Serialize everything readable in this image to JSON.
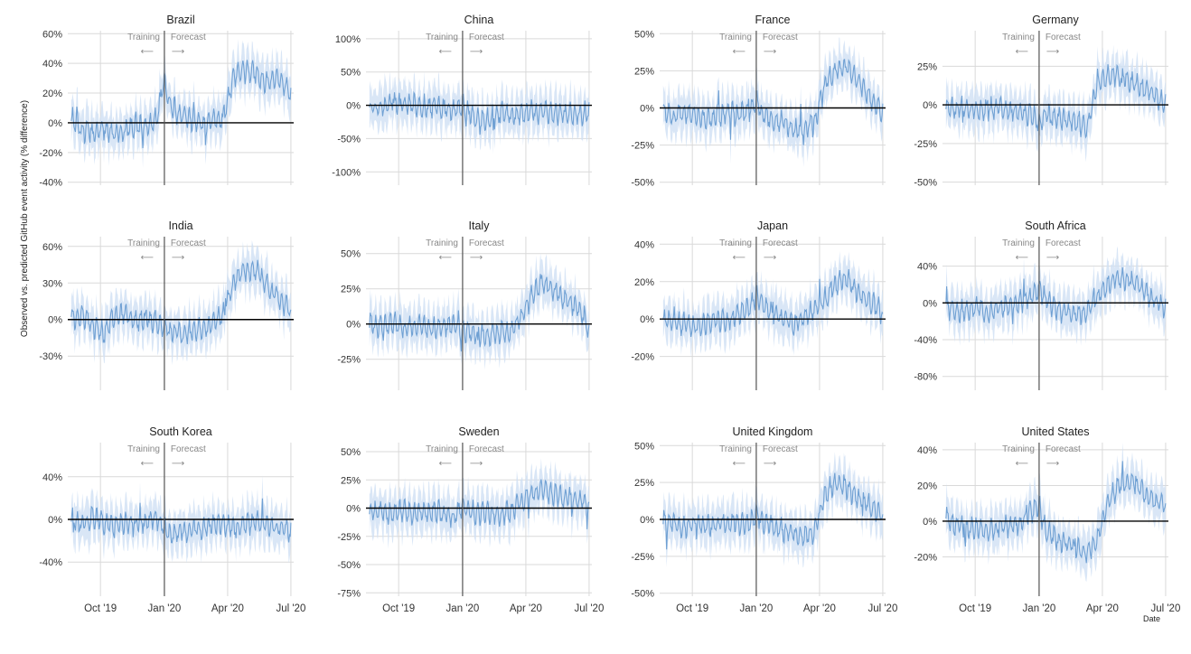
{
  "figure": {
    "ylabel": "Observed vs. predicted GitHub event activity (% difference)",
    "xlabel": "Date",
    "colors": {
      "band": "#cfe0f4",
      "line": "#6fa0d3",
      "zero": "#000000",
      "divider": "#555555",
      "grid": "#d9d9d9"
    },
    "annotations": {
      "training": "Training",
      "forecast": "Forecast",
      "arrow_left": "⟵",
      "arrow_right": "⟶"
    },
    "x_ticks": [
      "Oct '19",
      "Jan '20",
      "Apr '20",
      "Jul '20"
    ],
    "x_tick_dates": [
      "2019-10-01",
      "2020-01-01",
      "2020-04-01",
      "2020-07-01"
    ],
    "x_range": [
      "2019-08-15",
      "2020-07-05"
    ],
    "forecast_start": "2020-01-01"
  },
  "chart_data": [
    {
      "type": "line",
      "title": "Brazil",
      "ylim": [
        -42,
        62
      ],
      "y_ticks": [
        -40,
        -20,
        0,
        20,
        40,
        60
      ],
      "y_tick_labels": [
        "-40%",
        "-20%",
        "0%",
        "20%",
        "40%",
        "60%"
      ],
      "series": [
        {
          "x": [
            "2019-08-20",
            "2019-09-05",
            "2019-09-20",
            "2019-10-05",
            "2019-10-20",
            "2019-11-05",
            "2019-11-20",
            "2019-12-05",
            "2019-12-20",
            "2020-01-01",
            "2020-01-10",
            "2020-01-25",
            "2020-02-10",
            "2020-02-25",
            "2020-03-10",
            "2020-03-25",
            "2020-04-10",
            "2020-04-25",
            "2020-05-10",
            "2020-05-25",
            "2020-06-10",
            "2020-06-25",
            "2020-07-01"
          ],
          "values": [
            3,
            -5,
            -6,
            -4,
            -8,
            -5,
            -2,
            -4,
            2,
            28,
            12,
            4,
            2,
            -2,
            2,
            3,
            30,
            35,
            34,
            27,
            30,
            22,
            18
          ]
        }
      ]
    },
    {
      "type": "line",
      "title": "China",
      "ylim": [
        -120,
        112
      ],
      "y_ticks": [
        -100,
        -50,
        0,
        50,
        100
      ],
      "y_tick_labels": [
        "-100%",
        "-50%",
        "0%",
        "50%",
        "100%"
      ],
      "series": [
        {
          "x": [
            "2019-08-20",
            "2019-09-05",
            "2019-09-20",
            "2019-10-05",
            "2019-10-20",
            "2019-11-05",
            "2019-11-20",
            "2019-12-05",
            "2019-12-20",
            "2020-01-01",
            "2020-01-10",
            "2020-01-25",
            "2020-02-10",
            "2020-02-25",
            "2020-03-10",
            "2020-03-25",
            "2020-04-10",
            "2020-04-25",
            "2020-05-10",
            "2020-05-25",
            "2020-06-10",
            "2020-06-25",
            "2020-07-01"
          ],
          "values": [
            -5,
            -3,
            2,
            4,
            2,
            -2,
            -3,
            -4,
            -6,
            0,
            -10,
            -25,
            -20,
            -12,
            -15,
            -12,
            -10,
            -12,
            -10,
            -14,
            -15,
            -12,
            -10
          ]
        }
      ]
    },
    {
      "type": "line",
      "title": "France",
      "ylim": [
        -52,
        52
      ],
      "y_ticks": [
        -50,
        -25,
        0,
        25,
        50
      ],
      "y_tick_labels": [
        "-50%",
        "-25%",
        "0%",
        "25%",
        "50%"
      ],
      "series": [
        {
          "x": [
            "2019-08-20",
            "2019-09-05",
            "2019-09-20",
            "2019-10-05",
            "2019-10-20",
            "2019-11-05",
            "2019-11-20",
            "2019-12-05",
            "2019-12-20",
            "2020-01-01",
            "2020-01-10",
            "2020-01-25",
            "2020-02-10",
            "2020-02-25",
            "2020-03-10",
            "2020-03-25",
            "2020-04-10",
            "2020-04-25",
            "2020-05-10",
            "2020-05-25",
            "2020-06-10",
            "2020-06-25",
            "2020-07-01"
          ],
          "values": [
            -2,
            -6,
            -3,
            -5,
            -8,
            -6,
            -3,
            -5,
            -2,
            5,
            -5,
            -8,
            -10,
            -15,
            -14,
            -10,
            18,
            25,
            28,
            18,
            8,
            0,
            -3
          ]
        }
      ]
    },
    {
      "type": "line",
      "title": "Germany",
      "ylim": [
        -52,
        48
      ],
      "y_ticks": [
        -50,
        -25,
        0,
        25
      ],
      "y_tick_labels": [
        "-50%",
        "-25%",
        "0%",
        "25%"
      ],
      "series": [
        {
          "x": [
            "2019-08-20",
            "2019-09-05",
            "2019-09-20",
            "2019-10-05",
            "2019-10-20",
            "2019-11-05",
            "2019-11-20",
            "2019-12-05",
            "2019-12-20",
            "2020-01-01",
            "2020-01-10",
            "2020-01-25",
            "2020-02-10",
            "2020-02-25",
            "2020-03-10",
            "2020-03-25",
            "2020-04-10",
            "2020-04-25",
            "2020-05-10",
            "2020-05-25",
            "2020-06-10",
            "2020-06-25",
            "2020-07-01"
          ],
          "values": [
            -2,
            -3,
            -2,
            -4,
            -3,
            -2,
            -4,
            -5,
            -6,
            -12,
            -6,
            -8,
            -10,
            -12,
            -15,
            16,
            18,
            20,
            15,
            12,
            8,
            3,
            0
          ]
        }
      ]
    },
    {
      "type": "line",
      "title": "India",
      "ylim": [
        -58,
        68
      ],
      "y_ticks": [
        -30,
        0,
        30,
        60
      ],
      "y_tick_labels": [
        "-30%",
        "0%",
        "30%",
        "60%"
      ],
      "series": [
        {
          "x": [
            "2019-08-20",
            "2019-09-05",
            "2019-09-20",
            "2019-10-05",
            "2019-10-20",
            "2019-11-05",
            "2019-11-20",
            "2019-12-05",
            "2019-12-20",
            "2020-01-01",
            "2020-01-10",
            "2020-01-25",
            "2020-02-10",
            "2020-02-25",
            "2020-03-10",
            "2020-03-25",
            "2020-04-10",
            "2020-04-25",
            "2020-05-10",
            "2020-05-25",
            "2020-06-10",
            "2020-06-25",
            "2020-07-01"
          ],
          "values": [
            0,
            5,
            -5,
            -12,
            2,
            5,
            -2,
            2,
            -3,
            -5,
            -8,
            -12,
            -10,
            -8,
            -5,
            5,
            30,
            40,
            42,
            30,
            20,
            10,
            5
          ]
        }
      ]
    },
    {
      "type": "line",
      "title": "Italy",
      "ylim": [
        -47,
        62
      ],
      "y_ticks": [
        -25,
        0,
        25,
        50
      ],
      "y_tick_labels": [
        "-25%",
        "0%",
        "25%",
        "50%"
      ],
      "series": [
        {
          "x": [
            "2019-08-20",
            "2019-09-05",
            "2019-09-20",
            "2019-10-05",
            "2019-10-20",
            "2019-11-05",
            "2019-11-20",
            "2019-12-05",
            "2019-12-20",
            "2020-01-01",
            "2020-01-10",
            "2020-01-25",
            "2020-02-10",
            "2020-02-25",
            "2020-03-10",
            "2020-03-25",
            "2020-04-10",
            "2020-04-25",
            "2020-05-10",
            "2020-05-25",
            "2020-06-10",
            "2020-06-25",
            "2020-07-01"
          ],
          "values": [
            0,
            -2,
            2,
            -3,
            -2,
            0,
            -4,
            -2,
            0,
            -6,
            -5,
            -8,
            -7,
            -6,
            -5,
            5,
            20,
            30,
            25,
            18,
            12,
            5,
            -5
          ]
        }
      ]
    },
    {
      "type": "line",
      "title": "Japan",
      "ylim": [
        -38,
        44
      ],
      "y_ticks": [
        -20,
        0,
        20,
        40
      ],
      "y_tick_labels": [
        "-20%",
        "0%",
        "20%",
        "40%"
      ],
      "series": [
        {
          "x": [
            "2019-08-20",
            "2019-09-05",
            "2019-09-20",
            "2019-10-05",
            "2019-10-20",
            "2019-11-05",
            "2019-11-20",
            "2019-12-05",
            "2019-12-20",
            "2020-01-01",
            "2020-01-10",
            "2020-01-25",
            "2020-02-10",
            "2020-02-25",
            "2020-03-10",
            "2020-03-25",
            "2020-04-10",
            "2020-04-25",
            "2020-05-10",
            "2020-05-25",
            "2020-06-10",
            "2020-06-25",
            "2020-07-01"
          ],
          "values": [
            0,
            -2,
            -3,
            -4,
            -2,
            0,
            -2,
            3,
            5,
            12,
            8,
            3,
            0,
            -3,
            2,
            5,
            12,
            18,
            22,
            15,
            10,
            5,
            2
          ]
        }
      ]
    },
    {
      "type": "line",
      "title": "South Africa",
      "ylim": [
        -95,
        72
      ],
      "y_ticks": [
        -80,
        -40,
        0,
        40
      ],
      "y_tick_labels": [
        "-80%",
        "-40%",
        "0%",
        "40%"
      ],
      "series": [
        {
          "x": [
            "2019-08-20",
            "2019-09-05",
            "2019-09-20",
            "2019-10-05",
            "2019-10-20",
            "2019-11-05",
            "2019-11-20",
            "2019-12-05",
            "2019-12-20",
            "2020-01-01",
            "2020-01-10",
            "2020-01-25",
            "2020-02-10",
            "2020-02-25",
            "2020-03-10",
            "2020-03-25",
            "2020-04-10",
            "2020-04-25",
            "2020-05-10",
            "2020-05-25",
            "2020-06-10",
            "2020-06-25",
            "2020-07-01"
          ],
          "values": [
            -5,
            -10,
            -8,
            -5,
            -12,
            -5,
            -3,
            2,
            5,
            15,
            5,
            -5,
            -10,
            -12,
            -8,
            5,
            20,
            28,
            25,
            15,
            5,
            -2,
            -5
          ]
        }
      ]
    },
    {
      "type": "line",
      "title": "South Korea",
      "ylim": [
        -72,
        72
      ],
      "y_ticks": [
        -40,
        0,
        40
      ],
      "y_tick_labels": [
        "-40%",
        "0%",
        "40%"
      ],
      "series": [
        {
          "x": [
            "2019-08-20",
            "2019-09-05",
            "2019-09-20",
            "2019-10-05",
            "2019-10-20",
            "2019-11-05",
            "2019-11-20",
            "2019-12-05",
            "2019-12-20",
            "2020-01-01",
            "2020-01-10",
            "2020-01-25",
            "2020-02-10",
            "2020-02-25",
            "2020-03-10",
            "2020-03-25",
            "2020-04-10",
            "2020-04-25",
            "2020-05-10",
            "2020-05-25",
            "2020-06-10",
            "2020-06-25",
            "2020-07-01"
          ],
          "values": [
            0,
            -5,
            2,
            -3,
            -8,
            -3,
            -5,
            -2,
            2,
            -8,
            -15,
            -12,
            -10,
            -8,
            -5,
            -5,
            -8,
            -5,
            -3,
            -5,
            -8,
            -10,
            -12
          ]
        }
      ]
    },
    {
      "type": "line",
      "title": "Sweden",
      "ylim": [
        -78,
        58
      ],
      "y_ticks": [
        -75,
        -50,
        -25,
        0,
        25,
        50
      ],
      "y_tick_labels": [
        "-75%",
        "-50%",
        "-25%",
        "0%",
        "25%",
        "50%"
      ],
      "series": [
        {
          "x": [
            "2019-08-20",
            "2019-09-05",
            "2019-09-20",
            "2019-10-05",
            "2019-10-20",
            "2019-11-05",
            "2019-11-20",
            "2019-12-05",
            "2019-12-20",
            "2020-01-01",
            "2020-01-10",
            "2020-01-25",
            "2020-02-10",
            "2020-02-25",
            "2020-03-10",
            "2020-03-25",
            "2020-04-10",
            "2020-04-25",
            "2020-05-10",
            "2020-05-25",
            "2020-06-10",
            "2020-06-25",
            "2020-07-01"
          ],
          "values": [
            -2,
            -3,
            -5,
            -2,
            -4,
            -3,
            -2,
            -5,
            -8,
            2,
            -2,
            -5,
            -4,
            -5,
            -3,
            5,
            12,
            15,
            12,
            10,
            8,
            5,
            3
          ]
        }
      ]
    },
    {
      "type": "line",
      "title": "United Kingdom",
      "ylim": [
        -52,
        52
      ],
      "y_ticks": [
        -50,
        -25,
        0,
        25,
        50
      ],
      "y_tick_labels": [
        "-50%",
        "-25%",
        "0%",
        "25%",
        "50%"
      ],
      "series": [
        {
          "x": [
            "2019-08-20",
            "2019-09-05",
            "2019-09-20",
            "2019-10-05",
            "2019-10-20",
            "2019-11-05",
            "2019-11-20",
            "2019-12-05",
            "2019-12-20",
            "2020-01-01",
            "2020-01-10",
            "2020-01-25",
            "2020-02-10",
            "2020-02-25",
            "2020-03-10",
            "2020-03-25",
            "2020-04-10",
            "2020-04-25",
            "2020-05-10",
            "2020-05-25",
            "2020-06-10",
            "2020-06-25",
            "2020-07-01"
          ],
          "values": [
            0,
            -3,
            -5,
            -2,
            -5,
            -3,
            -2,
            -3,
            -5,
            5,
            -2,
            -5,
            -8,
            -10,
            -12,
            -8,
            18,
            25,
            22,
            15,
            10,
            5,
            2
          ]
        }
      ]
    },
    {
      "type": "line",
      "title": "United States",
      "ylim": [
        -42,
        44
      ],
      "y_ticks": [
        -20,
        0,
        20,
        40
      ],
      "y_tick_labels": [
        "-20%",
        "0%",
        "20%",
        "40%"
      ],
      "series": [
        {
          "x": [
            "2019-08-20",
            "2019-09-05",
            "2019-09-20",
            "2019-10-05",
            "2019-10-20",
            "2019-11-05",
            "2019-11-20",
            "2019-12-05",
            "2019-12-20",
            "2020-01-01",
            "2020-01-10",
            "2020-01-25",
            "2020-02-10",
            "2020-02-25",
            "2020-03-10",
            "2020-03-25",
            "2020-04-10",
            "2020-04-25",
            "2020-05-10",
            "2020-05-25",
            "2020-06-10",
            "2020-06-25",
            "2020-07-01"
          ],
          "values": [
            2,
            -3,
            -5,
            -4,
            -6,
            -3,
            -2,
            -2,
            5,
            8,
            -5,
            -10,
            -12,
            -15,
            -18,
            -10,
            12,
            20,
            22,
            18,
            12,
            10,
            8
          ]
        }
      ]
    }
  ]
}
